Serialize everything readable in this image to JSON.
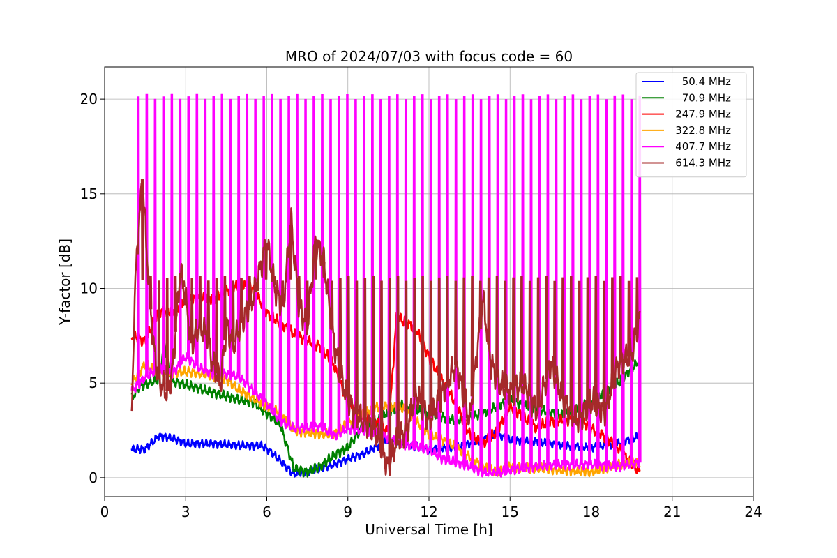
{
  "chart_data": {
    "type": "line",
    "title": "MRO of 2024/07/03 with focus code = 60",
    "xlabel": "Universal Time [h]",
    "ylabel": "Y-factor [dB]",
    "xlim": [
      0,
      24
    ],
    "ylim": [
      -1.0,
      21.7
    ],
    "xticks": [
      0,
      3,
      6,
      9,
      12,
      15,
      18,
      21,
      24
    ],
    "xtick_labels": [
      "0",
      "3",
      "6",
      "9",
      "12",
      "15",
      "18",
      "21",
      "24"
    ],
    "yticks": [
      0,
      5,
      10,
      15,
      20
    ],
    "ytick_labels": [
      "0",
      "5",
      "10",
      "15",
      "20"
    ],
    "grid": true,
    "legend_position": "top-right",
    "series": [
      {
        "name": "50.4 MHz",
        "color": "#0000ff",
        "base": [
          [
            1.0,
            1.5
          ],
          [
            1.5,
            1.5
          ],
          [
            2.0,
            2.2
          ],
          [
            2.5,
            2.1
          ],
          [
            3.0,
            1.8
          ],
          [
            4.0,
            1.8
          ],
          [
            5.0,
            1.7
          ],
          [
            5.8,
            1.7
          ],
          [
            6.2,
            1.3
          ],
          [
            6.7,
            0.6
          ],
          [
            7.0,
            0.2
          ],
          [
            7.5,
            0.3
          ],
          [
            8.0,
            0.5
          ],
          [
            8.5,
            0.7
          ],
          [
            9.0,
            1.0
          ],
          [
            9.5,
            1.2
          ],
          [
            10.0,
            1.6
          ],
          [
            10.5,
            2.0
          ],
          [
            11.0,
            1.8
          ],
          [
            12.0,
            1.5
          ],
          [
            13.0,
            1.6
          ],
          [
            14.0,
            2.0
          ],
          [
            14.5,
            2.3
          ],
          [
            15.0,
            2.0
          ],
          [
            16.0,
            1.9
          ],
          [
            17.0,
            1.7
          ],
          [
            18.0,
            1.6
          ],
          [
            19.0,
            1.8
          ],
          [
            19.8,
            2.2
          ]
        ],
        "noise": 0.25
      },
      {
        "name": "70.9 MHz",
        "color": "#008000",
        "base": [
          [
            1.0,
            4.2
          ],
          [
            1.3,
            4.8
          ],
          [
            2.0,
            5.2
          ],
          [
            2.2,
            7.0
          ],
          [
            2.5,
            5.1
          ],
          [
            3.0,
            4.9
          ],
          [
            4.0,
            4.5
          ],
          [
            5.0,
            4.1
          ],
          [
            5.5,
            4.0
          ],
          [
            6.0,
            3.4
          ],
          [
            6.5,
            2.8
          ],
          [
            7.0,
            0.5
          ],
          [
            7.5,
            0.3
          ],
          [
            8.0,
            0.6
          ],
          [
            8.5,
            1.2
          ],
          [
            9.0,
            1.6
          ],
          [
            9.5,
            2.6
          ],
          [
            10.0,
            2.9
          ],
          [
            10.5,
            3.5
          ],
          [
            11.0,
            3.8
          ],
          [
            12.0,
            3.4
          ],
          [
            13.0,
            3.0
          ],
          [
            14.0,
            3.4
          ],
          [
            15.0,
            4.1
          ],
          [
            16.0,
            3.6
          ],
          [
            17.0,
            3.3
          ],
          [
            18.0,
            4.0
          ],
          [
            19.0,
            5.0
          ],
          [
            19.8,
            6.2
          ]
        ],
        "noise": 0.3
      },
      {
        "name": "247.9 MHz",
        "color": "#ff0000",
        "base": [
          [
            1.0,
            7.5
          ],
          [
            1.5,
            7.2
          ],
          [
            2.0,
            8.8
          ],
          [
            2.5,
            8.8
          ],
          [
            3.0,
            9.4
          ],
          [
            4.0,
            9.5
          ],
          [
            5.0,
            10.2
          ],
          [
            5.5,
            10.0
          ],
          [
            6.0,
            8.7
          ],
          [
            7.0,
            7.6
          ],
          [
            8.0,
            6.9
          ],
          [
            8.5,
            5.9
          ],
          [
            9.0,
            3.9
          ],
          [
            9.5,
            3.3
          ],
          [
            10.0,
            3.0
          ],
          [
            10.5,
            2.4
          ],
          [
            10.8,
            8.5
          ],
          [
            11.5,
            7.9
          ],
          [
            12.0,
            6.4
          ],
          [
            12.5,
            5.1
          ],
          [
            13.0,
            3.9
          ],
          [
            13.5,
            2.3
          ],
          [
            14.0,
            1.8
          ],
          [
            14.5,
            2.4
          ],
          [
            15.0,
            3.8
          ],
          [
            16.0,
            2.6
          ],
          [
            16.5,
            3.0
          ],
          [
            17.5,
            3.1
          ],
          [
            18.0,
            2.6
          ],
          [
            18.5,
            2.2
          ],
          [
            19.0,
            1.6
          ],
          [
            19.5,
            0.7
          ],
          [
            19.8,
            0.3
          ]
        ],
        "noise": 0.35
      },
      {
        "name": "322.8 MHz",
        "color": "#ffa500",
        "base": [
          [
            1.0,
            5.0
          ],
          [
            1.5,
            6.0
          ],
          [
            2.0,
            5.5
          ],
          [
            3.0,
            5.6
          ],
          [
            4.0,
            5.4
          ],
          [
            4.5,
            5.2
          ],
          [
            5.0,
            4.6
          ],
          [
            6.0,
            3.8
          ],
          [
            6.5,
            3.4
          ],
          [
            7.0,
            2.5
          ],
          [
            7.5,
            2.4
          ],
          [
            8.0,
            2.3
          ],
          [
            8.5,
            2.3
          ],
          [
            9.0,
            2.9
          ],
          [
            10.0,
            3.7
          ],
          [
            10.5,
            3.8
          ],
          [
            11.0,
            3.7
          ],
          [
            12.0,
            2.3
          ],
          [
            12.5,
            2.0
          ],
          [
            13.0,
            1.6
          ],
          [
            14.0,
            0.6
          ],
          [
            14.5,
            0.3
          ],
          [
            15.0,
            0.6
          ],
          [
            16.0,
            0.5
          ],
          [
            17.0,
            0.4
          ],
          [
            18.0,
            0.3
          ],
          [
            19.0,
            0.7
          ],
          [
            19.8,
            0.8
          ]
        ],
        "noise": 0.3
      },
      {
        "name": "407.7 MHz",
        "color": "#ff00ff",
        "base": [
          [
            1.0,
            4.6
          ],
          [
            1.5,
            5.3
          ],
          [
            2.0,
            5.8
          ],
          [
            2.5,
            5.5
          ],
          [
            3.0,
            6.4
          ],
          [
            3.5,
            5.8
          ],
          [
            4.0,
            5.5
          ],
          [
            4.5,
            5.5
          ],
          [
            5.0,
            5.3
          ],
          [
            5.5,
            4.6
          ],
          [
            6.0,
            3.9
          ],
          [
            6.5,
            3.0
          ],
          [
            7.0,
            2.6
          ],
          [
            8.0,
            2.7
          ],
          [
            8.5,
            2.2
          ],
          [
            9.0,
            2.6
          ],
          [
            10.0,
            2.4
          ],
          [
            10.5,
            2.1
          ],
          [
            11.0,
            1.8
          ],
          [
            12.0,
            1.5
          ],
          [
            12.5,
            1.0
          ],
          [
            13.0,
            0.8
          ],
          [
            13.5,
            0.6
          ],
          [
            14.0,
            0.3
          ],
          [
            14.5,
            0.2
          ],
          [
            15.0,
            0.4
          ],
          [
            16.0,
            0.6
          ],
          [
            17.0,
            0.7
          ],
          [
            18.0,
            0.7
          ],
          [
            19.0,
            0.6
          ],
          [
            19.8,
            0.8
          ]
        ],
        "noise": 0.3,
        "spikes": {
          "top": 20.1,
          "first": 1.25,
          "last": 19.8,
          "count": 61,
          "width": 0.06
        }
      },
      {
        "name": "614.3 MHz",
        "color": "#a52a2a",
        "base": [
          [
            1.0,
            3.0
          ],
          [
            1.1,
            9.0
          ],
          [
            1.2,
            12.0
          ],
          [
            1.4,
            15.8
          ],
          [
            1.6,
            11.0
          ],
          [
            1.8,
            7.0
          ],
          [
            2.0,
            5.2
          ],
          [
            2.3,
            4.5
          ],
          [
            2.5,
            5.5
          ],
          [
            2.8,
            11.0
          ],
          [
            3.0,
            9.5
          ],
          [
            3.2,
            7.0
          ],
          [
            3.5,
            8.0
          ],
          [
            3.8,
            7.5
          ],
          [
            4.0,
            6.0
          ],
          [
            4.3,
            5.0
          ],
          [
            4.5,
            8.0
          ],
          [
            4.8,
            7.0
          ],
          [
            5.0,
            8.0
          ],
          [
            5.5,
            9.5
          ],
          [
            6.0,
            12.5
          ],
          [
            6.3,
            10.0
          ],
          [
            6.6,
            9.0
          ],
          [
            6.9,
            13.5
          ],
          [
            7.2,
            9.0
          ],
          [
            7.5,
            8.0
          ],
          [
            7.8,
            12.5
          ],
          [
            8.1,
            11.5
          ],
          [
            8.5,
            7.0
          ],
          [
            8.8,
            5.0
          ],
          [
            9.2,
            3.5
          ],
          [
            9.6,
            3.0
          ],
          [
            10.0,
            2.5
          ],
          [
            10.5,
            0.5
          ],
          [
            10.8,
            2.0
          ],
          [
            11.2,
            2.5
          ],
          [
            11.5,
            4.5
          ],
          [
            12.0,
            3.0
          ],
          [
            12.5,
            4.5
          ],
          [
            13.0,
            6.0
          ],
          [
            13.5,
            3.0
          ],
          [
            14.0,
            9.5
          ],
          [
            14.3,
            6.0
          ],
          [
            14.6,
            5.0
          ],
          [
            15.0,
            4.5
          ],
          [
            15.5,
            5.0
          ],
          [
            16.0,
            3.5
          ],
          [
            16.5,
            6.0
          ],
          [
            17.0,
            4.0
          ],
          [
            17.5,
            3.0
          ],
          [
            18.0,
            4.0
          ],
          [
            18.5,
            3.5
          ],
          [
            19.0,
            6.0
          ],
          [
            19.5,
            6.5
          ],
          [
            19.8,
            8.5
          ]
        ],
        "noise": 0.9,
        "spikes": {
          "top": 10.5,
          "first": 1.4,
          "last": 19.7,
          "count": 61,
          "width": 0.06
        }
      }
    ]
  }
}
